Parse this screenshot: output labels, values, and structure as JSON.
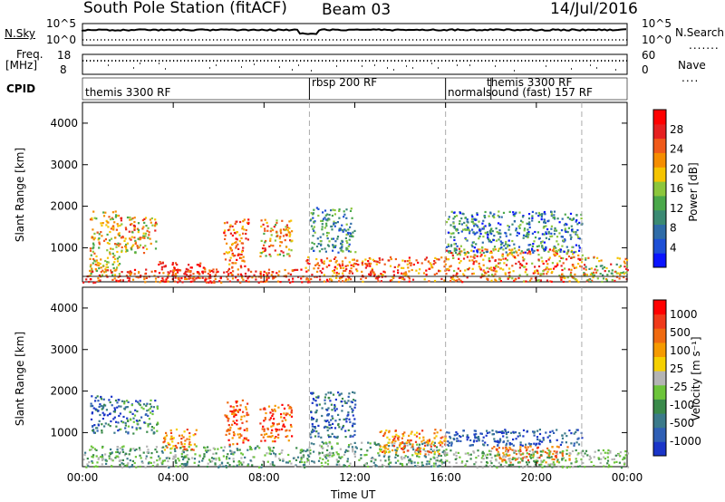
{
  "header": {
    "station": "South Pole Station (fitACF)",
    "beam": "Beam 03",
    "date": "14/Jul/2016"
  },
  "labels": {
    "nsky": "N.Sky",
    "nsearch": "N.Search",
    "freq": "Freq.",
    "mhz": "[MHz]",
    "nave": "Nave",
    "cpid": "CPID",
    "slant_range": "Slant Range [km]",
    "time_axis": "Time UT",
    "power_label": "Power [dB]",
    "velocity_label": "Velocity [m s⁻¹]"
  },
  "noise_axis": {
    "left_top": "10^5",
    "left_bottom": "10^0",
    "right_top": "10^5",
    "right_bottom": "10^0"
  },
  "freq_axis": {
    "left_top": "18",
    "left_bottom": "8",
    "right_top": "60",
    "right_bottom": "0"
  },
  "cpid_segments": [
    {
      "label": "themis 3300 RF",
      "start_hour": 0
    },
    {
      "label": "rbsp 200 RF",
      "start_hour": 10
    },
    {
      "label": "normalsound (fast) 157 RF",
      "start_hour": 16
    },
    {
      "label": "themis 3300 RF",
      "start_hour": 18
    }
  ],
  "chart_data": [
    {
      "type": "heatmap",
      "name": "Power",
      "xlabel": "Time UT",
      "ylabel": "Slant Range [km]",
      "x_ticks": [
        "00:00",
        "04:00",
        "08:00",
        "12:00",
        "16:00",
        "20:00",
        "00:00"
      ],
      "xlim_hours": [
        0,
        24
      ],
      "ylim_km": [
        180,
        4500
      ],
      "y_ticks": [
        1000,
        2000,
        3000,
        4000
      ],
      "colorbar_label": "Power [dB]",
      "colorbar_ticks": [
        "4",
        "8",
        "12",
        "16",
        "20",
        "24",
        "28"
      ],
      "colorscale": [
        "#0a14ff",
        "#1d4fd6",
        "#2f6ca8",
        "#3b8a73",
        "#4aa84a",
        "#8cc63c",
        "#f5c400",
        "#f58d00",
        "#f05a1a",
        "#e62020",
        "#ff0000"
      ],
      "dashed_hours": [
        10,
        16,
        22
      ]
    },
    {
      "type": "heatmap",
      "name": "Velocity",
      "xlabel": "Time UT",
      "ylabel": "Slant Range [km]",
      "x_ticks": [
        "00:00",
        "04:00",
        "08:00",
        "12:00",
        "16:00",
        "20:00",
        "00:00"
      ],
      "xlim_hours": [
        0,
        24
      ],
      "ylim_km": [
        180,
        4500
      ],
      "y_ticks": [
        1000,
        2000,
        3000,
        4000
      ],
      "colorbar_label": "Velocity [m s⁻¹]",
      "colorbar_ticks": [
        "1000",
        "500",
        "100",
        "25",
        "-25",
        "-100",
        "-500",
        "-1000"
      ],
      "colorscale": [
        "#1a35c8",
        "#2f5fb5",
        "#3b7a8a",
        "#3a8a4a",
        "#6cc43a",
        "#b4b4b4",
        "#f5d000",
        "#f59a00",
        "#f06a10",
        "#f03a1a",
        "#ff0000"
      ],
      "dashed_hours": [
        10,
        16,
        22
      ]
    }
  ]
}
